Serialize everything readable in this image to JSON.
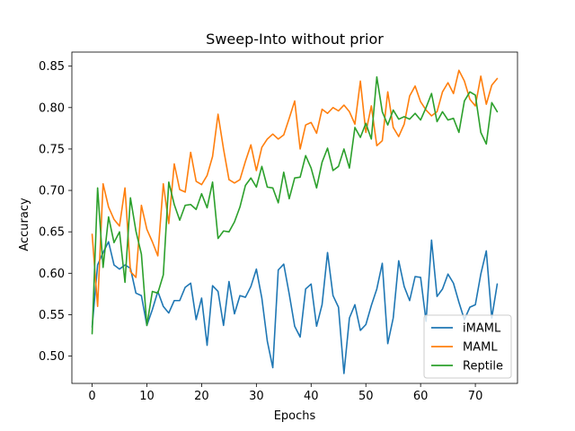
{
  "chart_data": {
    "type": "line",
    "title": "Sweep-Into without prior",
    "xlabel": "Epochs",
    "ylabel": "Accuracy",
    "xlim": [
      -3.7,
      77.7
    ],
    "ylim": [
      0.467,
      0.867
    ],
    "xticks": [
      0,
      10,
      20,
      30,
      40,
      50,
      60,
      70
    ],
    "yticks": [
      0.5,
      0.55,
      0.6,
      0.65,
      0.7,
      0.75,
      0.8,
      0.85
    ],
    "ytick_labels": [
      "0.50",
      "0.55",
      "0.60",
      "0.65",
      "0.70",
      "0.75",
      "0.80",
      "0.85"
    ],
    "legend_position": "lower-right",
    "grid": false,
    "series": [
      {
        "name": "iMAML",
        "color": "#1f77b4",
        "values": [
          0.535,
          0.61,
          0.625,
          0.638,
          0.61,
          0.605,
          0.61,
          0.606,
          0.576,
          0.573,
          0.537,
          0.556,
          0.578,
          0.56,
          0.552,
          0.567,
          0.567,
          0.583,
          0.588,
          0.544,
          0.57,
          0.513,
          0.585,
          0.578,
          0.537,
          0.59,
          0.551,
          0.573,
          0.571,
          0.584,
          0.605,
          0.57,
          0.518,
          0.486,
          0.604,
          0.611,
          0.575,
          0.536,
          0.523,
          0.581,
          0.587,
          0.536,
          0.562,
          0.625,
          0.573,
          0.559,
          0.479,
          0.546,
          0.562,
          0.531,
          0.538,
          0.561,
          0.581,
          0.612,
          0.515,
          0.546,
          0.615,
          0.584,
          0.567,
          0.596,
          0.595,
          0.542,
          0.64,
          0.572,
          0.581,
          0.599,
          0.588,
          0.565,
          0.544,
          0.559,
          0.562,
          0.599,
          0.627,
          0.546,
          0.587
        ]
      },
      {
        "name": "MAML",
        "color": "#ff7f0e",
        "values": [
          0.647,
          0.56,
          0.708,
          0.68,
          0.665,
          0.657,
          0.703,
          0.602,
          0.595,
          0.682,
          0.653,
          0.638,
          0.621,
          0.708,
          0.66,
          0.732,
          0.701,
          0.698,
          0.746,
          0.711,
          0.707,
          0.718,
          0.741,
          0.792,
          0.75,
          0.713,
          0.709,
          0.713,
          0.735,
          0.755,
          0.724,
          0.752,
          0.762,
          0.768,
          0.762,
          0.767,
          0.787,
          0.808,
          0.75,
          0.779,
          0.782,
          0.769,
          0.798,
          0.793,
          0.8,
          0.796,
          0.803,
          0.795,
          0.78,
          0.832,
          0.77,
          0.802,
          0.754,
          0.76,
          0.819,
          0.776,
          0.765,
          0.78,
          0.814,
          0.826,
          0.807,
          0.797,
          0.79,
          0.795,
          0.819,
          0.83,
          0.817,
          0.845,
          0.832,
          0.81,
          0.802,
          0.838,
          0.804,
          0.827,
          0.835
        ]
      },
      {
        "name": "Reptile",
        "color": "#2ca02c",
        "values": [
          0.527,
          0.703,
          0.607,
          0.668,
          0.637,
          0.65,
          0.589,
          0.691,
          0.651,
          0.623,
          0.537,
          0.578,
          0.576,
          0.598,
          0.71,
          0.683,
          0.664,
          0.682,
          0.683,
          0.677,
          0.696,
          0.679,
          0.71,
          0.642,
          0.651,
          0.65,
          0.662,
          0.68,
          0.706,
          0.715,
          0.704,
          0.729,
          0.704,
          0.703,
          0.685,
          0.722,
          0.69,
          0.715,
          0.716,
          0.742,
          0.727,
          0.703,
          0.734,
          0.751,
          0.724,
          0.729,
          0.75,
          0.727,
          0.776,
          0.764,
          0.781,
          0.762,
          0.837,
          0.795,
          0.779,
          0.797,
          0.786,
          0.789,
          0.786,
          0.793,
          0.785,
          0.8,
          0.817,
          0.783,
          0.795,
          0.785,
          0.787,
          0.77,
          0.808,
          0.819,
          0.815,
          0.77,
          0.756,
          0.806,
          0.795
        ]
      }
    ]
  }
}
